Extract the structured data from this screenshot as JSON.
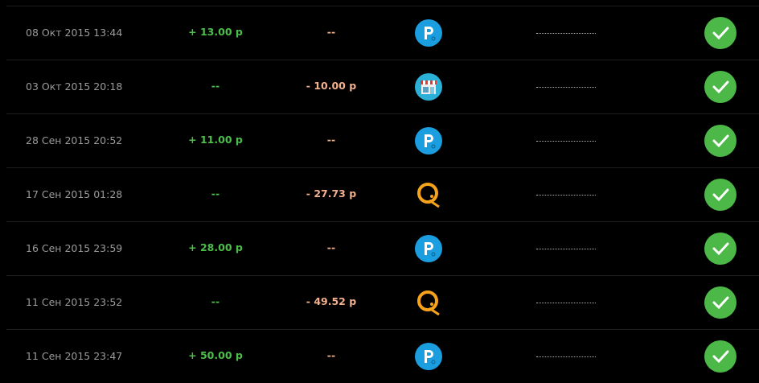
{
  "colors": {
    "income": "#4cbf4a",
    "expense": "#f2b08c",
    "status": "#4cb848",
    "payeer": "#1a9ee0",
    "qiwi": "#f7a21b"
  },
  "rows": [
    {
      "date": "08 Окт 2015 13:44",
      "income": "+ 13.00 р",
      "expense": "--",
      "method_icon": "payeer-icon",
      "status_icon": "check-icon"
    },
    {
      "date": "03 Окт 2015 20:18",
      "income": "--",
      "expense": "- 10.00 р",
      "method_icon": "shop-icon",
      "status_icon": "check-icon"
    },
    {
      "date": "28 Сен 2015 20:52",
      "income": "+ 11.00 р",
      "expense": "--",
      "method_icon": "payeer-icon",
      "status_icon": "check-icon"
    },
    {
      "date": "17 Сен 2015 01:28",
      "income": "--",
      "expense": "- 27.73 р",
      "method_icon": "qiwi-icon",
      "status_icon": "check-icon"
    },
    {
      "date": "16 Сен 2015 23:59",
      "income": "+ 28.00 р",
      "expense": "--",
      "method_icon": "payeer-icon",
      "status_icon": "check-icon"
    },
    {
      "date": "11 Сен 2015 23:52",
      "income": "--",
      "expense": "- 49.52 р",
      "method_icon": "qiwi-icon",
      "status_icon": "check-icon"
    },
    {
      "date": "11 Сен 2015 23:47",
      "income": "+ 50.00 р",
      "expense": "--",
      "method_icon": "payeer-icon",
      "status_icon": "check-icon"
    }
  ]
}
